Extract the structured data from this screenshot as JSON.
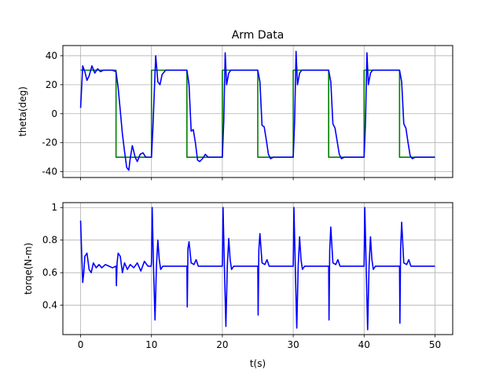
{
  "chart_data": [
    {
      "type": "line",
      "title": "Arm Data",
      "xlabel": "",
      "ylabel": "theta(deg)",
      "xlim": [
        -2.5,
        52.5
      ],
      "ylim": [
        -44,
        47
      ],
      "xticks": [
        0,
        10,
        20,
        30,
        40,
        50
      ],
      "yticks": [
        -40,
        -20,
        0,
        20,
        40
      ],
      "grid": true,
      "colors": {
        "response": "#0000ff",
        "setpoint": "#008000"
      },
      "series": [
        {
          "role": "setpoint",
          "x": [
            0,
            5,
            5,
            10,
            10,
            15,
            15,
            20,
            20,
            25,
            25,
            30,
            30,
            35,
            35,
            40,
            40,
            45,
            45,
            50
          ],
          "y": [
            30,
            30,
            -30,
            -30,
            30,
            30,
            -30,
            -30,
            30,
            30,
            -30,
            -30,
            30,
            30,
            -30,
            -30,
            30,
            30,
            -30,
            -30
          ]
        },
        {
          "role": "response",
          "x": [
            0,
            0.3,
            0.6,
            0.9,
            1.2,
            1.6,
            2.0,
            2.4,
            2.8,
            3.2,
            3.6,
            4.0,
            4.5,
            5.0,
            5.3,
            5.6,
            5.9,
            6.2,
            6.5,
            6.8,
            7.0,
            7.3,
            7.7,
            8.0,
            8.4,
            8.8,
            9.2,
            9.6,
            10.0,
            10.2,
            10.4,
            10.6,
            10.9,
            11.2,
            11.5,
            12.0,
            12.5,
            13.0,
            15.0,
            15.3,
            15.6,
            15.9,
            16.2,
            16.5,
            16.8,
            17.2,
            17.6,
            18.0,
            19.0,
            20.0,
            20.2,
            20.4,
            20.6,
            20.9,
            21.2,
            21.6,
            22.0,
            22.5,
            23.0,
            25.0,
            25.3,
            25.6,
            25.9,
            26.2,
            26.5,
            26.8,
            27.2,
            27.6,
            28.0,
            30.0,
            30.2,
            30.4,
            30.6,
            30.9,
            31.2,
            31.6,
            32.0,
            32.5,
            33.0,
            35.0,
            35.3,
            35.6,
            35.9,
            36.2,
            36.5,
            36.8,
            37.2,
            37.6,
            38.0,
            40.0,
            40.2,
            40.4,
            40.6,
            40.9,
            41.2,
            41.6,
            42.0,
            42.5,
            43.0,
            45.0,
            45.3,
            45.6,
            45.9,
            46.2,
            46.5,
            46.8,
            47.2,
            47.6,
            48.0,
            50.0
          ],
          "y": [
            4,
            33,
            29,
            23,
            26,
            33,
            28,
            31,
            29,
            30,
            30,
            30,
            30,
            29,
            18,
            2,
            -14,
            -26,
            -37,
            -39,
            -31,
            -22,
            -30,
            -33,
            -28,
            -27,
            -30,
            -30,
            -30,
            -10,
            15,
            40,
            22,
            20,
            27,
            30,
            30,
            30,
            30,
            20,
            -12,
            -11,
            -20,
            -32,
            -33,
            -31,
            -28,
            -30,
            -30,
            -30,
            -5,
            42,
            20,
            28,
            30,
            30,
            30,
            30,
            30,
            30,
            22,
            -8,
            -9,
            -18,
            -28,
            -31,
            -30,
            -30,
            -30,
            -30,
            -5,
            43,
            20,
            28,
            30,
            30,
            30,
            30,
            30,
            30,
            22,
            -7,
            -10,
            -19,
            -28,
            -31,
            -30,
            -30,
            -30,
            -30,
            -5,
            42,
            20,
            28,
            30,
            30,
            30,
            30,
            30,
            30,
            22,
            -7,
            -10,
            -20,
            -29,
            -31,
            -30,
            -30,
            -30,
            -30
          ]
        }
      ]
    },
    {
      "type": "line",
      "title": "",
      "xlabel": "t(s)",
      "ylabel": "torqe(N-m)",
      "xlim": [
        -2.5,
        52.5
      ],
      "ylim": [
        0.22,
        1.03
      ],
      "xticks": [
        0,
        10,
        20,
        30,
        40,
        50
      ],
      "yticks": [
        0.4,
        0.6,
        0.8,
        1.0
      ],
      "grid": true,
      "colors": {
        "response": "#0000ff"
      },
      "series": [
        {
          "role": "response",
          "x": [
            0,
            0.15,
            0.3,
            0.45,
            0.6,
            0.9,
            1.2,
            1.5,
            1.8,
            2.2,
            2.6,
            3.0,
            3.5,
            4.0,
            4.5,
            5.0,
            5.05,
            5.15,
            5.3,
            5.6,
            5.9,
            6.2,
            6.6,
            7.0,
            7.5,
            8.0,
            8.5,
            9.0,
            9.5,
            9.95,
            10.0,
            10.1,
            10.3,
            10.5,
            10.7,
            10.9,
            11.1,
            11.3,
            11.6,
            12.0,
            12.5,
            13.0,
            14.0,
            15.0,
            15.05,
            15.15,
            15.3,
            15.6,
            16.0,
            16.3,
            16.6,
            17.0,
            17.5,
            18.0,
            19.0,
            20.0,
            20.1,
            20.3,
            20.5,
            20.7,
            20.9,
            21.1,
            21.3,
            21.6,
            22.0,
            22.5,
            23.0,
            24.0,
            25.0,
            25.05,
            25.15,
            25.3,
            25.6,
            26.0,
            26.3,
            26.6,
            27.0,
            27.5,
            28.0,
            29.0,
            30.0,
            30.1,
            30.3,
            30.5,
            30.7,
            30.9,
            31.1,
            31.3,
            31.6,
            32.0,
            32.5,
            33.0,
            34.0,
            35.0,
            35.05,
            35.15,
            35.3,
            35.6,
            36.0,
            36.3,
            36.6,
            37.0,
            37.5,
            38.0,
            39.0,
            40.0,
            40.1,
            40.3,
            40.5,
            40.7,
            40.9,
            41.1,
            41.3,
            41.6,
            42.0,
            42.5,
            43.0,
            44.0,
            45.0,
            45.05,
            45.15,
            45.3,
            45.6,
            46.0,
            46.3,
            46.6,
            47.0,
            47.5,
            48.0,
            49.0,
            50.0
          ],
          "y": [
            0.92,
            0.72,
            0.54,
            0.6,
            0.7,
            0.72,
            0.62,
            0.6,
            0.66,
            0.63,
            0.65,
            0.63,
            0.65,
            0.64,
            0.63,
            0.64,
            0.52,
            0.66,
            0.72,
            0.7,
            0.6,
            0.66,
            0.62,
            0.65,
            0.63,
            0.66,
            0.61,
            0.67,
            0.64,
            0.64,
            0.66,
            1.0,
            0.62,
            0.31,
            0.64,
            0.8,
            0.68,
            0.62,
            0.64,
            0.64,
            0.64,
            0.64,
            0.64,
            0.64,
            0.39,
            0.75,
            0.79,
            0.66,
            0.65,
            0.68,
            0.64,
            0.64,
            0.64,
            0.64,
            0.64,
            0.64,
            1.0,
            0.62,
            0.27,
            0.64,
            0.81,
            0.68,
            0.62,
            0.64,
            0.64,
            0.64,
            0.64,
            0.64,
            0.64,
            0.34,
            0.74,
            0.84,
            0.66,
            0.65,
            0.68,
            0.64,
            0.64,
            0.64,
            0.64,
            0.64,
            0.64,
            1.0,
            0.62,
            0.26,
            0.64,
            0.82,
            0.68,
            0.62,
            0.64,
            0.64,
            0.64,
            0.64,
            0.64,
            0.64,
            0.31,
            0.74,
            0.88,
            0.66,
            0.65,
            0.68,
            0.64,
            0.64,
            0.64,
            0.64,
            0.64,
            0.64,
            1.0,
            0.62,
            0.25,
            0.64,
            0.82,
            0.68,
            0.62,
            0.64,
            0.64,
            0.64,
            0.64,
            0.64,
            0.64,
            0.29,
            0.74,
            0.91,
            0.66,
            0.65,
            0.68,
            0.64,
            0.64,
            0.64,
            0.64,
            0.64,
            0.64
          ]
        }
      ]
    }
  ]
}
